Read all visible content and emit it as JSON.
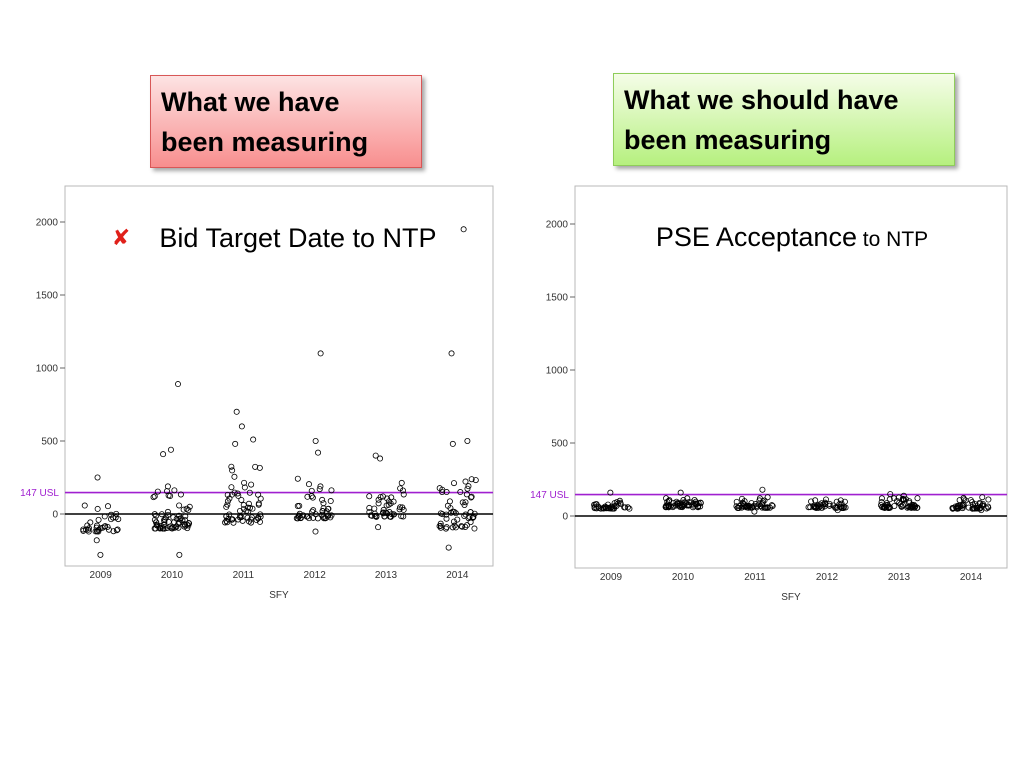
{
  "left_callout": {
    "line1": "What we have",
    "line2": "been measuring"
  },
  "right_callout": {
    "line1": "What we should have",
    "line2": "been measuring"
  },
  "colors": {
    "usl_line": "#a020d0",
    "zero_line": "#000000",
    "marker": "#000000",
    "wrong_mark": "#e0201a"
  },
  "wrong_mark_icon": "cross-icon",
  "chart_data": [
    {
      "type": "scatter",
      "title": "Bid Target Date to NTP",
      "title_small": "",
      "xlabel": "SFY",
      "ylabel": "",
      "categories": [
        "2009",
        "2010",
        "2011",
        "2012",
        "2013",
        "2014"
      ],
      "ylim": [
        -400,
        2150
      ],
      "y_ticks": [
        0,
        500,
        1000,
        1500,
        2000
      ],
      "reference_lines": [
        {
          "y": 147,
          "label": "147 USL",
          "color": "#a020d0"
        },
        {
          "y": 0,
          "label": "",
          "color": "#000000"
        }
      ],
      "grid": false,
      "outliers": [
        {
          "x": "2009",
          "y": 250
        },
        {
          "x": "2009",
          "y": -280
        },
        {
          "x": "2009",
          "y": -180
        },
        {
          "x": "2010",
          "y": 890
        },
        {
          "x": "2010",
          "y": 440
        },
        {
          "x": "2010",
          "y": 410
        },
        {
          "x": "2010",
          "y": -280
        },
        {
          "x": "2011",
          "y": 700
        },
        {
          "x": "2011",
          "y": 600
        },
        {
          "x": "2011",
          "y": 510
        },
        {
          "x": "2011",
          "y": 480
        },
        {
          "x": "2012",
          "y": 1100
        },
        {
          "x": "2012",
          "y": 500
        },
        {
          "x": "2012",
          "y": 420
        },
        {
          "x": "2012",
          "y": -120
        },
        {
          "x": "2013",
          "y": 400
        },
        {
          "x": "2013",
          "y": 380
        },
        {
          "x": "2013",
          "y": -90
        },
        {
          "x": "2014",
          "y": 1950
        },
        {
          "x": "2014",
          "y": 1100
        },
        {
          "x": "2014",
          "y": 500
        },
        {
          "x": "2014",
          "y": 480
        },
        {
          "x": "2014",
          "y": -230
        }
      ],
      "series": [
        {
          "x": "2009",
          "y_range": [
            -120,
            100
          ],
          "count": 35
        },
        {
          "x": "2010",
          "y_range": [
            -100,
            200
          ],
          "count": 70
        },
        {
          "x": "2011",
          "y_range": [
            -60,
            350
          ],
          "count": 60
        },
        {
          "x": "2012",
          "y_range": [
            -30,
            280
          ],
          "count": 45
        },
        {
          "x": "2013",
          "y_range": [
            -20,
            220
          ],
          "count": 45
        },
        {
          "x": "2014",
          "y_range": [
            -100,
            250
          ],
          "count": 55
        }
      ]
    },
    {
      "type": "scatter",
      "title": "PSE Acceptance",
      "title_small": "to NTP",
      "xlabel": "SFY",
      "ylabel": "",
      "categories": [
        "2009",
        "2010",
        "2011",
        "2012",
        "2013",
        "2014"
      ],
      "ylim": [
        -400,
        2150
      ],
      "y_ticks": [
        0,
        500,
        1000,
        1500,
        2000
      ],
      "reference_lines": [
        {
          "y": 147,
          "label": "147 USL",
          "color": "#a020d0"
        },
        {
          "y": 0,
          "label": "",
          "color": "#000000"
        }
      ],
      "grid": false,
      "outliers": [
        {
          "x": "2009",
          "y": 160
        },
        {
          "x": "2010",
          "y": 160
        },
        {
          "x": "2011",
          "y": 180
        },
        {
          "x": "2011",
          "y": 30
        },
        {
          "x": "2012",
          "y": 40
        },
        {
          "x": "2013",
          "y": 150
        },
        {
          "x": "2014",
          "y": 40
        }
      ],
      "series": [
        {
          "x": "2009",
          "y_range": [
            50,
            110
          ],
          "count": 40
        },
        {
          "x": "2010",
          "y_range": [
            60,
            130
          ],
          "count": 60
        },
        {
          "x": "2011",
          "y_range": [
            55,
            140
          ],
          "count": 50
        },
        {
          "x": "2012",
          "y_range": [
            55,
            115
          ],
          "count": 45
        },
        {
          "x": "2013",
          "y_range": [
            55,
            140
          ],
          "count": 55
        },
        {
          "x": "2014",
          "y_range": [
            50,
            130
          ],
          "count": 50
        }
      ]
    }
  ]
}
